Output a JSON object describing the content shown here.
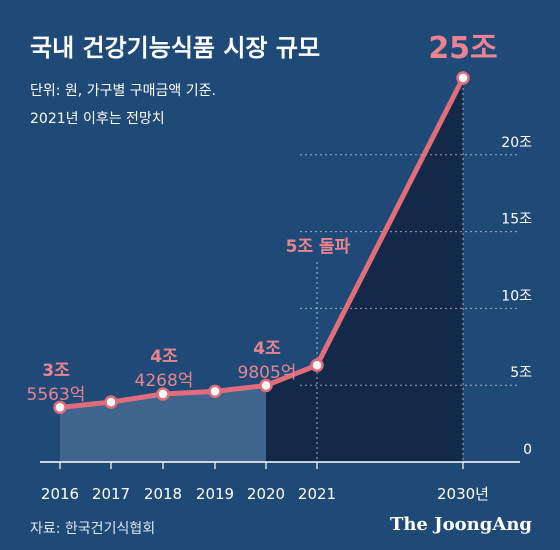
{
  "header": {
    "title": "국내 건강기능식품 시장 규모",
    "note_unit": "단위: 원, 가구별 구매금액 기준.",
    "note_forecast": "2021년 이후는 전망치"
  },
  "footer": {
    "source": "자료: 한국건기식협회",
    "logo": "The JoongAng"
  },
  "colors": {
    "background": "#1f4a78",
    "line": "#e26d7a",
    "label": "#e8838f",
    "actual_fill": "#3f648e",
    "forecast_fill": "#13294a"
  },
  "chart_data": {
    "type": "line",
    "title": "국내 건강기능식품 시장 규모",
    "unit": "원",
    "x": [
      "2016",
      "2017",
      "2018",
      "2019",
      "2020",
      "2021",
      "2030년"
    ],
    "values": [
      3.5563,
      3.9,
      4.4268,
      4.6,
      4.9805,
      6.3,
      25
    ],
    "ylim": [
      0,
      25
    ],
    "yticks": [
      {
        "value": 0,
        "label": "0"
      },
      {
        "value": 5,
        "label": "5조"
      },
      {
        "value": 10,
        "label": "10조"
      },
      {
        "value": 15,
        "label": "15조"
      },
      {
        "value": 20,
        "label": "20조"
      }
    ],
    "data_labels": [
      {
        "index": 0,
        "line1": "3조",
        "line2": "5563억"
      },
      {
        "index": 2,
        "line1": "4조",
        "line2": "4268억"
      },
      {
        "index": 4,
        "line1": "4조",
        "line2": "9805억"
      },
      {
        "index": 5,
        "line1": "5조 돌파",
        "line2": ""
      },
      {
        "index": 6,
        "line1": "25조",
        "line2": ""
      }
    ],
    "actual_through_index": 4,
    "grid": "dotted",
    "legend": "none"
  }
}
